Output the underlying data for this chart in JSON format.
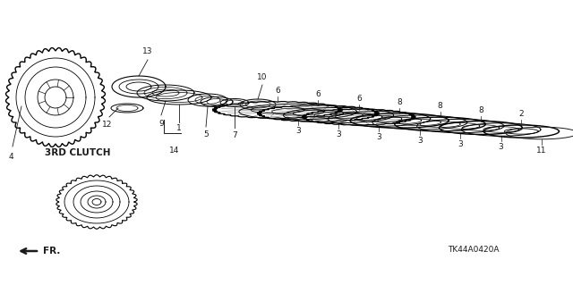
{
  "bg_color": "#ffffff",
  "line_color": "#1a1a1a",
  "diagram_code": "TK44A0420A",
  "figsize": [
    6.4,
    3.19
  ],
  "dpi": 100
}
